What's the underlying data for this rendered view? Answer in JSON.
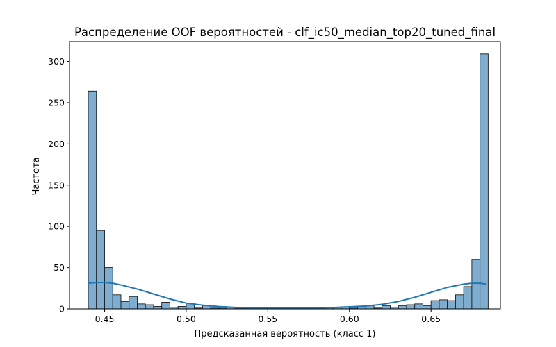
{
  "chart_data": {
    "type": "bar",
    "title": "Распределение OOF вероятностей - clf_ic50_median_top20_tuned_final",
    "xlabel": "Предсказанная вероятность (класс 1)",
    "ylabel": "Частота",
    "xlim": [
      0.4285,
      0.6925
    ],
    "ylim": [
      0,
      324
    ],
    "xticks": [
      0.45,
      0.5,
      0.55,
      0.6,
      0.65
    ],
    "xtick_labels": [
      "0.45",
      "0.50",
      "0.55",
      "0.60",
      "0.65"
    ],
    "yticks": [
      0,
      50,
      100,
      150,
      200,
      250,
      300
    ],
    "ytick_labels": [
      "0",
      "50",
      "100",
      "150",
      "200",
      "250",
      "300"
    ],
    "grid": false,
    "bins": {
      "start": 0.44,
      "width": 0.005,
      "counts": [
        264,
        95,
        50,
        17,
        9,
        15,
        6,
        5,
        3,
        8,
        2,
        3,
        7,
        1,
        4,
        1,
        1,
        2,
        1,
        1,
        1,
        1,
        1,
        1,
        1,
        1,
        1,
        2,
        1,
        2,
        2,
        2,
        1,
        2,
        4,
        1,
        4,
        2,
        4,
        5,
        6,
        4,
        10,
        11,
        10,
        17,
        27,
        60,
        309
      ]
    },
    "kde": {
      "x": [
        0.44,
        0.445,
        0.45,
        0.455,
        0.46,
        0.47,
        0.48,
        0.49,
        0.5,
        0.51,
        0.52,
        0.53,
        0.54,
        0.55,
        0.56,
        0.57,
        0.58,
        0.59,
        0.6,
        0.61,
        0.62,
        0.63,
        0.64,
        0.65,
        0.66,
        0.67,
        0.675,
        0.68,
        0.684
      ],
      "y": [
        31,
        32,
        32,
        31,
        29,
        24,
        18,
        12,
        7,
        4.5,
        2.8,
        1.8,
        1.3,
        1.1,
        1.0,
        1.1,
        1.3,
        1.7,
        2.5,
        3.5,
        5.5,
        9,
        14,
        20,
        26,
        30,
        31,
        31,
        30
      ]
    }
  }
}
